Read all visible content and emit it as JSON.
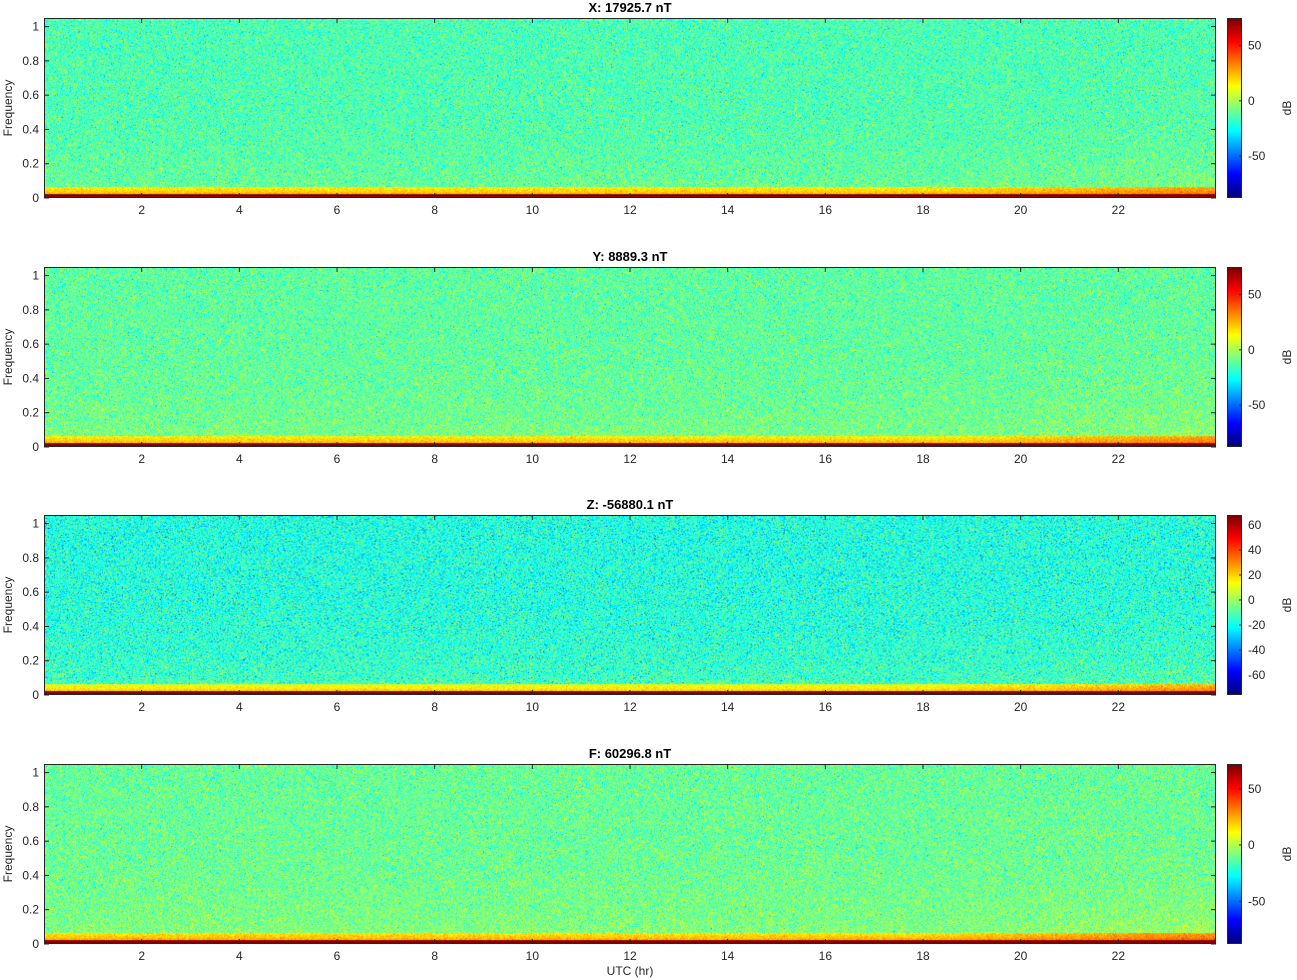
{
  "chart_data": [
    {
      "type": "heatmap",
      "title": "X: 17925.7 nT",
      "xlabel": "",
      "ylabel": "Frequency",
      "x_range_hr": [
        0,
        24
      ],
      "xticks": [
        2,
        4,
        6,
        8,
        10,
        12,
        14,
        16,
        18,
        20,
        22
      ],
      "ylim": [
        0,
        1.05
      ],
      "yticks": [
        0,
        0.2,
        0.4,
        0.6,
        0.8,
        1
      ],
      "colorbar": {
        "label": "dB",
        "clim": [
          -88,
          75
        ],
        "ticks": [
          50,
          0,
          -50
        ],
        "colormap": "jet"
      },
      "background_level_db": -15,
      "low_freq_band_db": 35,
      "dc_line_db": 75,
      "late_day_increase_from_hr": 18
    },
    {
      "type": "heatmap",
      "title": "Y: 8889.3 nT",
      "xlabel": "",
      "ylabel": "Frequency",
      "x_range_hr": [
        0,
        24
      ],
      "xticks": [
        2,
        4,
        6,
        8,
        10,
        12,
        14,
        16,
        18,
        20,
        22
      ],
      "ylim": [
        0,
        1.05
      ],
      "yticks": [
        0,
        0.2,
        0.4,
        0.6,
        0.8,
        1
      ],
      "colorbar": {
        "label": "dB",
        "clim": [
          -88,
          75
        ],
        "ticks": [
          50,
          0,
          -50
        ],
        "colormap": "jet"
      },
      "background_level_db": -12,
      "low_freq_band_db": 35,
      "dc_line_db": 75,
      "late_day_increase_from_hr": 19
    },
    {
      "type": "heatmap",
      "title": "Z: -56880.1 nT",
      "xlabel": "",
      "ylabel": "Frequency",
      "x_range_hr": [
        0,
        24
      ],
      "xticks": [
        2,
        4,
        6,
        8,
        10,
        12,
        14,
        16,
        18,
        20,
        22
      ],
      "ylim": [
        0,
        1.05
      ],
      "yticks": [
        0,
        0.2,
        0.4,
        0.6,
        0.8,
        1
      ],
      "colorbar": {
        "label": "dB",
        "clim": [
          -76,
          68
        ],
        "ticks": [
          60,
          40,
          20,
          0,
          -20,
          -40,
          -60
        ],
        "colormap": "jet"
      },
      "background_level_db": -18,
      "low_freq_band_db": 30,
      "dc_line_db": 68,
      "late_day_increase_from_hr": 18
    },
    {
      "type": "heatmap",
      "title": "F: 60296.8 nT",
      "xlabel": "UTC (hr)",
      "ylabel": "Frequency",
      "x_range_hr": [
        0,
        24
      ],
      "xticks": [
        2,
        4,
        6,
        8,
        10,
        12,
        14,
        16,
        18,
        20,
        22
      ],
      "ylim": [
        0,
        1.05
      ],
      "yticks": [
        0,
        0.2,
        0.4,
        0.6,
        0.8,
        1
      ],
      "colorbar": {
        "label": "dB",
        "clim": [
          -88,
          72
        ],
        "ticks": [
          50,
          0,
          -50
        ],
        "colormap": "jet"
      },
      "background_level_db": -12,
      "low_freq_band_db": 35,
      "dc_line_db": 72,
      "late_day_increase_from_hr": 18
    }
  ]
}
